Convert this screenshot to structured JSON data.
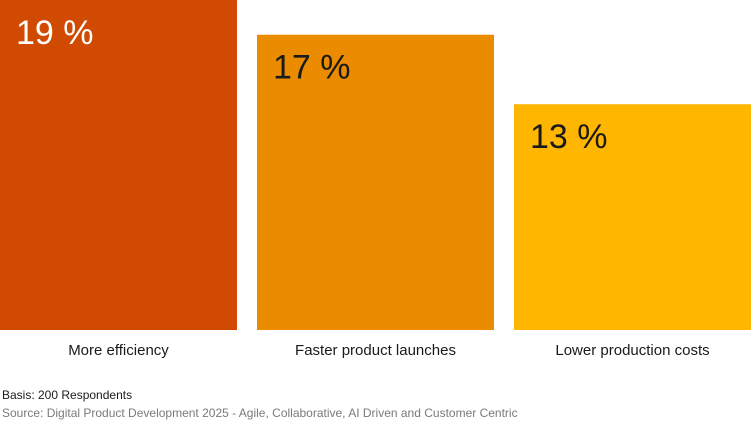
{
  "chart_data": {
    "type": "bar",
    "categories": [
      "More efficiency",
      "Faster product launches",
      "Lower production costs"
    ],
    "values": [
      19,
      17,
      13
    ],
    "data_labels": [
      "19 %",
      "17 %",
      "13 %"
    ],
    "colors": [
      "#d04a02",
      "#eb8c00",
      "#ffb600"
    ],
    "label_colors": [
      "#ffffff",
      "#1a1a1a",
      "#1a1a1a"
    ],
    "ylim": [
      0,
      19
    ],
    "grid": false,
    "title": "",
    "xlabel": "",
    "ylabel": ""
  },
  "footer": {
    "basis": "Basis: 200 Respondents",
    "source": "Source: Digital Product Development 2025 - Agile, Collaborative, AI Driven and Customer Centric"
  }
}
